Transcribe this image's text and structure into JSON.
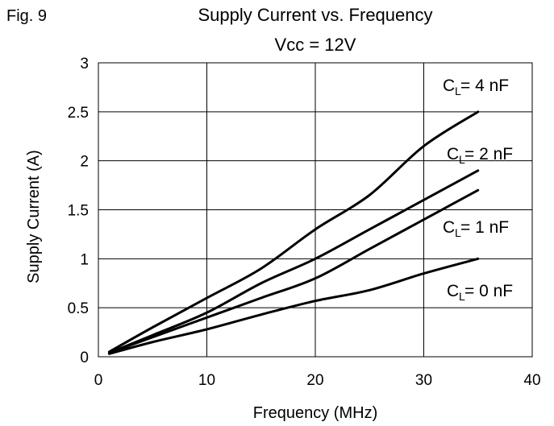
{
  "figure_label": "Fig. 9",
  "chart_data": {
    "type": "line",
    "title": "Supply Current vs. Frequency",
    "subtitle": "Vcc = 12V",
    "xlabel": "Frequency (MHz)",
    "ylabel": "Supply Current (A)",
    "xlim": [
      0,
      40
    ],
    "ylim": [
      0,
      3
    ],
    "x_ticks": [
      "0",
      "10",
      "20",
      "30",
      "40"
    ],
    "y_ticks": [
      "0",
      "0.5",
      "1",
      "1.5",
      "2",
      "2.5",
      "3"
    ],
    "grid": true,
    "series": [
      {
        "name": "CL = 4 nF",
        "label_main": "C",
        "label_sub": "L",
        "label_rest": " = 4 nF",
        "x": [
          1,
          5,
          10,
          15,
          20,
          25,
          30,
          35
        ],
        "y": [
          0.05,
          0.3,
          0.6,
          0.9,
          1.3,
          1.65,
          2.15,
          2.5
        ]
      },
      {
        "name": "CL = 2 nF",
        "label_main": "C",
        "label_sub": "L",
        "label_rest": " = 2 nF",
        "x": [
          1,
          5,
          10,
          15,
          20,
          25,
          30,
          35
        ],
        "y": [
          0.04,
          0.22,
          0.45,
          0.75,
          1.0,
          1.3,
          1.6,
          1.9
        ]
      },
      {
        "name": "CL = 1 nF",
        "label_main": "C",
        "label_sub": "L",
        "label_rest": " = 1 nF",
        "x": [
          1,
          5,
          10,
          15,
          20,
          25,
          30,
          35
        ],
        "y": [
          0.04,
          0.2,
          0.4,
          0.6,
          0.8,
          1.1,
          1.4,
          1.7
        ]
      },
      {
        "name": "CL = 0 nF",
        "label_main": "C",
        "label_sub": "L",
        "label_rest": " = 0 nF",
        "x": [
          1,
          5,
          10,
          15,
          20,
          25,
          30,
          35
        ],
        "y": [
          0.03,
          0.15,
          0.28,
          0.43,
          0.57,
          0.68,
          0.85,
          1.0
        ]
      }
    ]
  }
}
